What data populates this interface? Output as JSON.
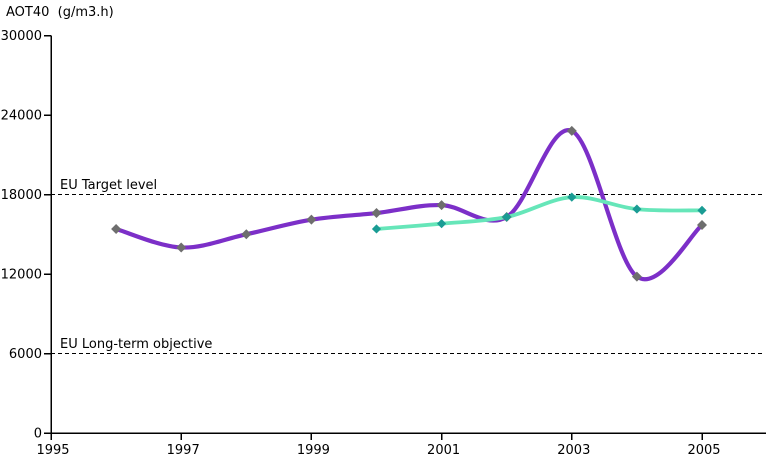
{
  "chart_data": {
    "type": "line",
    "title": "AOT40  (g/m3.h)",
    "xlabel": "",
    "ylabel": "AOT40 (g/m3.h)",
    "xlim": [
      1995,
      2006
    ],
    "ylim": [
      0,
      30000
    ],
    "grid": false,
    "legend": "none",
    "xticks": [
      1995,
      1997,
      1999,
      2001,
      2003,
      2005
    ],
    "yticks": [
      0,
      6000,
      12000,
      18000,
      24000,
      30000
    ],
    "reference_lines": [
      {
        "id": "eu-target-level",
        "label": "EU Target level",
        "value": 18000,
        "style": "dashed",
        "color": "#000000"
      },
      {
        "id": "eu-long-term-objective",
        "label": "EU Long-term objective",
        "value": 6000,
        "style": "dashed",
        "color": "#000000"
      }
    ],
    "series": [
      {
        "name": "purple-series",
        "line_color": "#7C2FC8",
        "marker": "diamond",
        "marker_color": "#6E6E6E",
        "smooth": true,
        "x": [
          1996,
          1997,
          1998,
          1999,
          2000,
          2001,
          2002,
          2003,
          2004,
          2005
        ],
        "values": [
          15400,
          14000,
          15000,
          16100,
          16600,
          17200,
          16300,
          22800,
          11800,
          15700
        ]
      },
      {
        "name": "green-series",
        "line_color": "#66E6B9",
        "marker": "diamond",
        "marker_color": "#1A9C94",
        "smooth": true,
        "x": [
          2000,
          2001,
          2002,
          2003,
          2004,
          2005
        ],
        "values": [
          15400,
          15800,
          16300,
          17800,
          16900,
          16800
        ]
      }
    ]
  },
  "colors": {
    "background": "#FFFFFF",
    "axis": "#000000",
    "text": "#000000"
  }
}
